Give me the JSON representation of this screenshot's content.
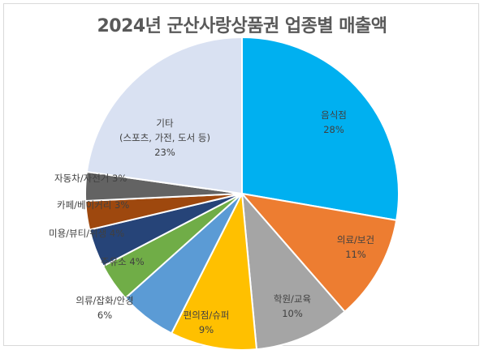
{
  "chart_data": {
    "type": "pie",
    "title": "2024년 군산사랑상품권 업종별 매출액",
    "slices": [
      {
        "name": "음식점",
        "value": 28,
        "label": "28%",
        "color": "#00b0f0"
      },
      {
        "name": "의료/보건",
        "value": 11,
        "label": "11%",
        "color": "#ed7d31"
      },
      {
        "name": "학원/교육",
        "value": 10,
        "label": "10%",
        "color": "#a5a5a5"
      },
      {
        "name": "편의점/슈퍼",
        "value": 9,
        "label": "9%",
        "color": "#ffc000"
      },
      {
        "name": "의류/잡화/안경",
        "value": 6,
        "label": "6%",
        "color": "#5b9bd5"
      },
      {
        "name": "주유소",
        "value": 4,
        "label": "4%",
        "color": "#70ad47"
      },
      {
        "name": "미용/뷰티/위생",
        "value": 4,
        "label": "4%",
        "color": "#264478"
      },
      {
        "name": "카페/베이커리",
        "value": 3,
        "label": "3%",
        "color": "#9e480e"
      },
      {
        "name": "자동차/자전거",
        "value": 3,
        "label": "3%",
        "color": "#636363"
      },
      {
        "name": "기타\n(스포츠, 가전, 도서 등)",
        "value": 23,
        "label": "23%",
        "color": "#d9e1f2"
      }
    ],
    "legend": "none",
    "data_labels": "category name and percentage"
  }
}
